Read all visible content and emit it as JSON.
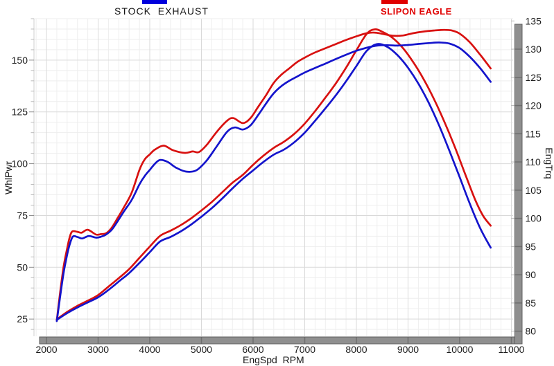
{
  "legend": {
    "stock": {
      "label": "STOCK  EXHAUST",
      "color": "#0000dd"
    },
    "eagle": {
      "label": "SLIPON EAGLE",
      "color": "#e00000"
    }
  },
  "colors": {
    "stock_line": "#1414cc",
    "eagle_line": "#d81110",
    "grid_minor": "#eeeeee",
    "grid_major": "#d9d9d9",
    "axis_edge": "#cfcfcf",
    "tick_minor": "#bbbbbb",
    "tick_major": "#8a8a8a",
    "bar_fill": "#8f8f8f",
    "bar_border": "#5f5f5f",
    "bar_separator": "#6e6e6e",
    "text": "#1a1a1a"
  },
  "chart_data": {
    "type": "line",
    "title": "",
    "x_axis": {
      "label": "EngSpd  RPM",
      "min": 1758,
      "max": 11034,
      "ticks": [
        2000,
        3000,
        4000,
        5000,
        6000,
        7000,
        8000,
        9000,
        10000,
        11000
      ],
      "minor_step": 200,
      "grid": true
    },
    "left_axis": {
      "label": "WhlPwr",
      "min": 16.7,
      "max": 170.0,
      "ticks": [
        25,
        50,
        75,
        100,
        125,
        150
      ],
      "minor_step": 5,
      "grid": true
    },
    "right_axis": {
      "label": "EngTrq",
      "min": 79.1,
      "max": 135.4,
      "ticks": [
        80,
        85,
        90,
        95,
        100,
        105,
        110,
        115,
        120,
        125,
        130,
        135
      ],
      "minor_step": 5,
      "grid": false
    },
    "legend_position": "top",
    "series": [
      {
        "name": "SLIPON EAGLE EngTrq",
        "axis": "right",
        "color": "#d81110",
        "points": [
          [
            2200,
            82.1
          ],
          [
            2400,
            83.4
          ],
          [
            2600,
            84.5
          ],
          [
            2800,
            85.4
          ],
          [
            3000,
            86.4
          ],
          [
            3200,
            87.9
          ],
          [
            3400,
            89.4
          ],
          [
            3600,
            91.0
          ],
          [
            3800,
            93.0
          ],
          [
            4000,
            95.0
          ],
          [
            4200,
            96.9
          ],
          [
            4400,
            97.8
          ],
          [
            4600,
            98.8
          ],
          [
            4800,
            100.0
          ],
          [
            5000,
            101.4
          ],
          [
            5200,
            102.9
          ],
          [
            5400,
            104.6
          ],
          [
            5600,
            106.3
          ],
          [
            5800,
            107.7
          ],
          [
            6000,
            109.5
          ],
          [
            6200,
            111.1
          ],
          [
            6400,
            112.5
          ],
          [
            6600,
            113.6
          ],
          [
            6800,
            115.0
          ],
          [
            7000,
            116.8
          ],
          [
            7200,
            119.0
          ],
          [
            7400,
            121.4
          ],
          [
            7600,
            123.9
          ],
          [
            7800,
            126.7
          ],
          [
            8000,
            129.8
          ],
          [
            8200,
            132.7
          ],
          [
            8350,
            133.5
          ],
          [
            8500,
            133.1
          ],
          [
            8700,
            132.0
          ],
          [
            8900,
            130.2
          ],
          [
            9100,
            127.7
          ],
          [
            9300,
            124.7
          ],
          [
            9500,
            121.2
          ],
          [
            9700,
            117.2
          ],
          [
            9900,
            112.8
          ],
          [
            10100,
            108.0
          ],
          [
            10300,
            103.3
          ],
          [
            10450,
            100.5
          ],
          [
            10600,
            98.7
          ]
        ]
      },
      {
        "name": "STOCK EXHAUST EngTrq",
        "axis": "right",
        "color": "#1414cc",
        "points": [
          [
            2200,
            82.0
          ],
          [
            2400,
            83.2
          ],
          [
            2600,
            84.2
          ],
          [
            2800,
            85.1
          ],
          [
            3000,
            86.0
          ],
          [
            3200,
            87.3
          ],
          [
            3400,
            88.8
          ],
          [
            3600,
            90.3
          ],
          [
            3800,
            92.1
          ],
          [
            4000,
            94.0
          ],
          [
            4200,
            95.9
          ],
          [
            4400,
            96.7
          ],
          [
            4600,
            97.7
          ],
          [
            4800,
            98.9
          ],
          [
            5000,
            100.3
          ],
          [
            5200,
            101.8
          ],
          [
            5400,
            103.5
          ],
          [
            5600,
            105.3
          ],
          [
            5800,
            107.0
          ],
          [
            6000,
            108.5
          ],
          [
            6200,
            110.0
          ],
          [
            6400,
            111.3
          ],
          [
            6600,
            112.2
          ],
          [
            6800,
            113.5
          ],
          [
            7000,
            115.2
          ],
          [
            7200,
            117.3
          ],
          [
            7400,
            119.5
          ],
          [
            7600,
            121.8
          ],
          [
            7800,
            124.3
          ],
          [
            8000,
            127.0
          ],
          [
            8200,
            129.7
          ],
          [
            8400,
            130.9
          ],
          [
            8600,
            130.4
          ],
          [
            8800,
            128.9
          ],
          [
            9000,
            126.7
          ],
          [
            9200,
            123.9
          ],
          [
            9400,
            120.5
          ],
          [
            9600,
            116.5
          ],
          [
            9800,
            112.0
          ],
          [
            10000,
            107.3
          ],
          [
            10200,
            102.5
          ],
          [
            10400,
            98.2
          ],
          [
            10600,
            94.8
          ]
        ]
      },
      {
        "name": "SLIPON EAGLE WhlPwr",
        "axis": "left",
        "color": "#d81110",
        "points": [
          [
            2200,
            24.3
          ],
          [
            2260,
            37
          ],
          [
            2330,
            50
          ],
          [
            2400,
            59
          ],
          [
            2450,
            64.5
          ],
          [
            2500,
            67.3
          ],
          [
            2600,
            67.1
          ],
          [
            2680,
            66.7
          ],
          [
            2800,
            68.1
          ],
          [
            2960,
            65.8
          ],
          [
            3060,
            66.0
          ],
          [
            3160,
            66.5
          ],
          [
            3260,
            69
          ],
          [
            3360,
            73
          ],
          [
            3500,
            79
          ],
          [
            3650,
            86
          ],
          [
            3800,
            97
          ],
          [
            3900,
            102
          ],
          [
            4000,
            104.5
          ],
          [
            4100,
            106.8
          ],
          [
            4270,
            108.7
          ],
          [
            4450,
            106.5
          ],
          [
            4680,
            105.2
          ],
          [
            4830,
            105.9
          ],
          [
            4950,
            105.6
          ],
          [
            5100,
            109
          ],
          [
            5300,
            115.5
          ],
          [
            5500,
            120.8
          ],
          [
            5620,
            122
          ],
          [
            5800,
            119.6
          ],
          [
            5950,
            122
          ],
          [
            6100,
            127.5
          ],
          [
            6250,
            133
          ],
          [
            6400,
            139
          ],
          [
            6550,
            143
          ],
          [
            6700,
            146
          ],
          [
            6850,
            149
          ],
          [
            7000,
            151.2
          ],
          [
            7200,
            153.7
          ],
          [
            7400,
            155.7
          ],
          [
            7600,
            157.7
          ],
          [
            7800,
            159.7
          ],
          [
            8000,
            161.5
          ],
          [
            8200,
            163
          ],
          [
            8350,
            163.3
          ],
          [
            8500,
            162.7
          ],
          [
            8700,
            161.8
          ],
          [
            8900,
            161.9
          ],
          [
            9100,
            163
          ],
          [
            9300,
            163.8
          ],
          [
            9500,
            164.3
          ],
          [
            9700,
            164.6
          ],
          [
            9850,
            164.3
          ],
          [
            10000,
            162.8
          ],
          [
            10200,
            158.5
          ],
          [
            10400,
            152.5
          ],
          [
            10600,
            146
          ]
        ]
      },
      {
        "name": "STOCK EXHAUST WhlPwr",
        "axis": "left",
        "color": "#1414cc",
        "points": [
          [
            2200,
            24
          ],
          [
            2260,
            35
          ],
          [
            2330,
            47
          ],
          [
            2400,
            56
          ],
          [
            2450,
            61
          ],
          [
            2510,
            64.8
          ],
          [
            2600,
            64.6
          ],
          [
            2690,
            63.9
          ],
          [
            2820,
            65.1
          ],
          [
            2960,
            64.3
          ],
          [
            3060,
            64.8
          ],
          [
            3160,
            65.9
          ],
          [
            3260,
            68
          ],
          [
            3360,
            71.5
          ],
          [
            3500,
            77
          ],
          [
            3650,
            82.5
          ],
          [
            3800,
            90
          ],
          [
            3900,
            94
          ],
          [
            4000,
            97
          ],
          [
            4100,
            100
          ],
          [
            4200,
            101.8
          ],
          [
            4350,
            100.8
          ],
          [
            4500,
            98.2
          ],
          [
            4700,
            96.2
          ],
          [
            4900,
            96.8
          ],
          [
            5100,
            101.5
          ],
          [
            5300,
            108.5
          ],
          [
            5500,
            115.5
          ],
          [
            5650,
            117.5
          ],
          [
            5800,
            116.5
          ],
          [
            5950,
            118.5
          ],
          [
            6100,
            123.5
          ],
          [
            6250,
            129
          ],
          [
            6400,
            134
          ],
          [
            6550,
            137.5
          ],
          [
            6700,
            140
          ],
          [
            6850,
            142
          ],
          [
            7000,
            144
          ],
          [
            7200,
            146.2
          ],
          [
            7400,
            148.3
          ],
          [
            7600,
            150.5
          ],
          [
            7800,
            152.6
          ],
          [
            8000,
            154.5
          ],
          [
            8200,
            156
          ],
          [
            8400,
            157
          ],
          [
            8600,
            157.2
          ],
          [
            8800,
            157
          ],
          [
            9000,
            157.3
          ],
          [
            9200,
            157.8
          ],
          [
            9400,
            158.2
          ],
          [
            9600,
            158.5
          ],
          [
            9800,
            158
          ],
          [
            10000,
            155.8
          ],
          [
            10200,
            151.5
          ],
          [
            10400,
            146
          ],
          [
            10600,
            139.5
          ]
        ]
      }
    ]
  }
}
